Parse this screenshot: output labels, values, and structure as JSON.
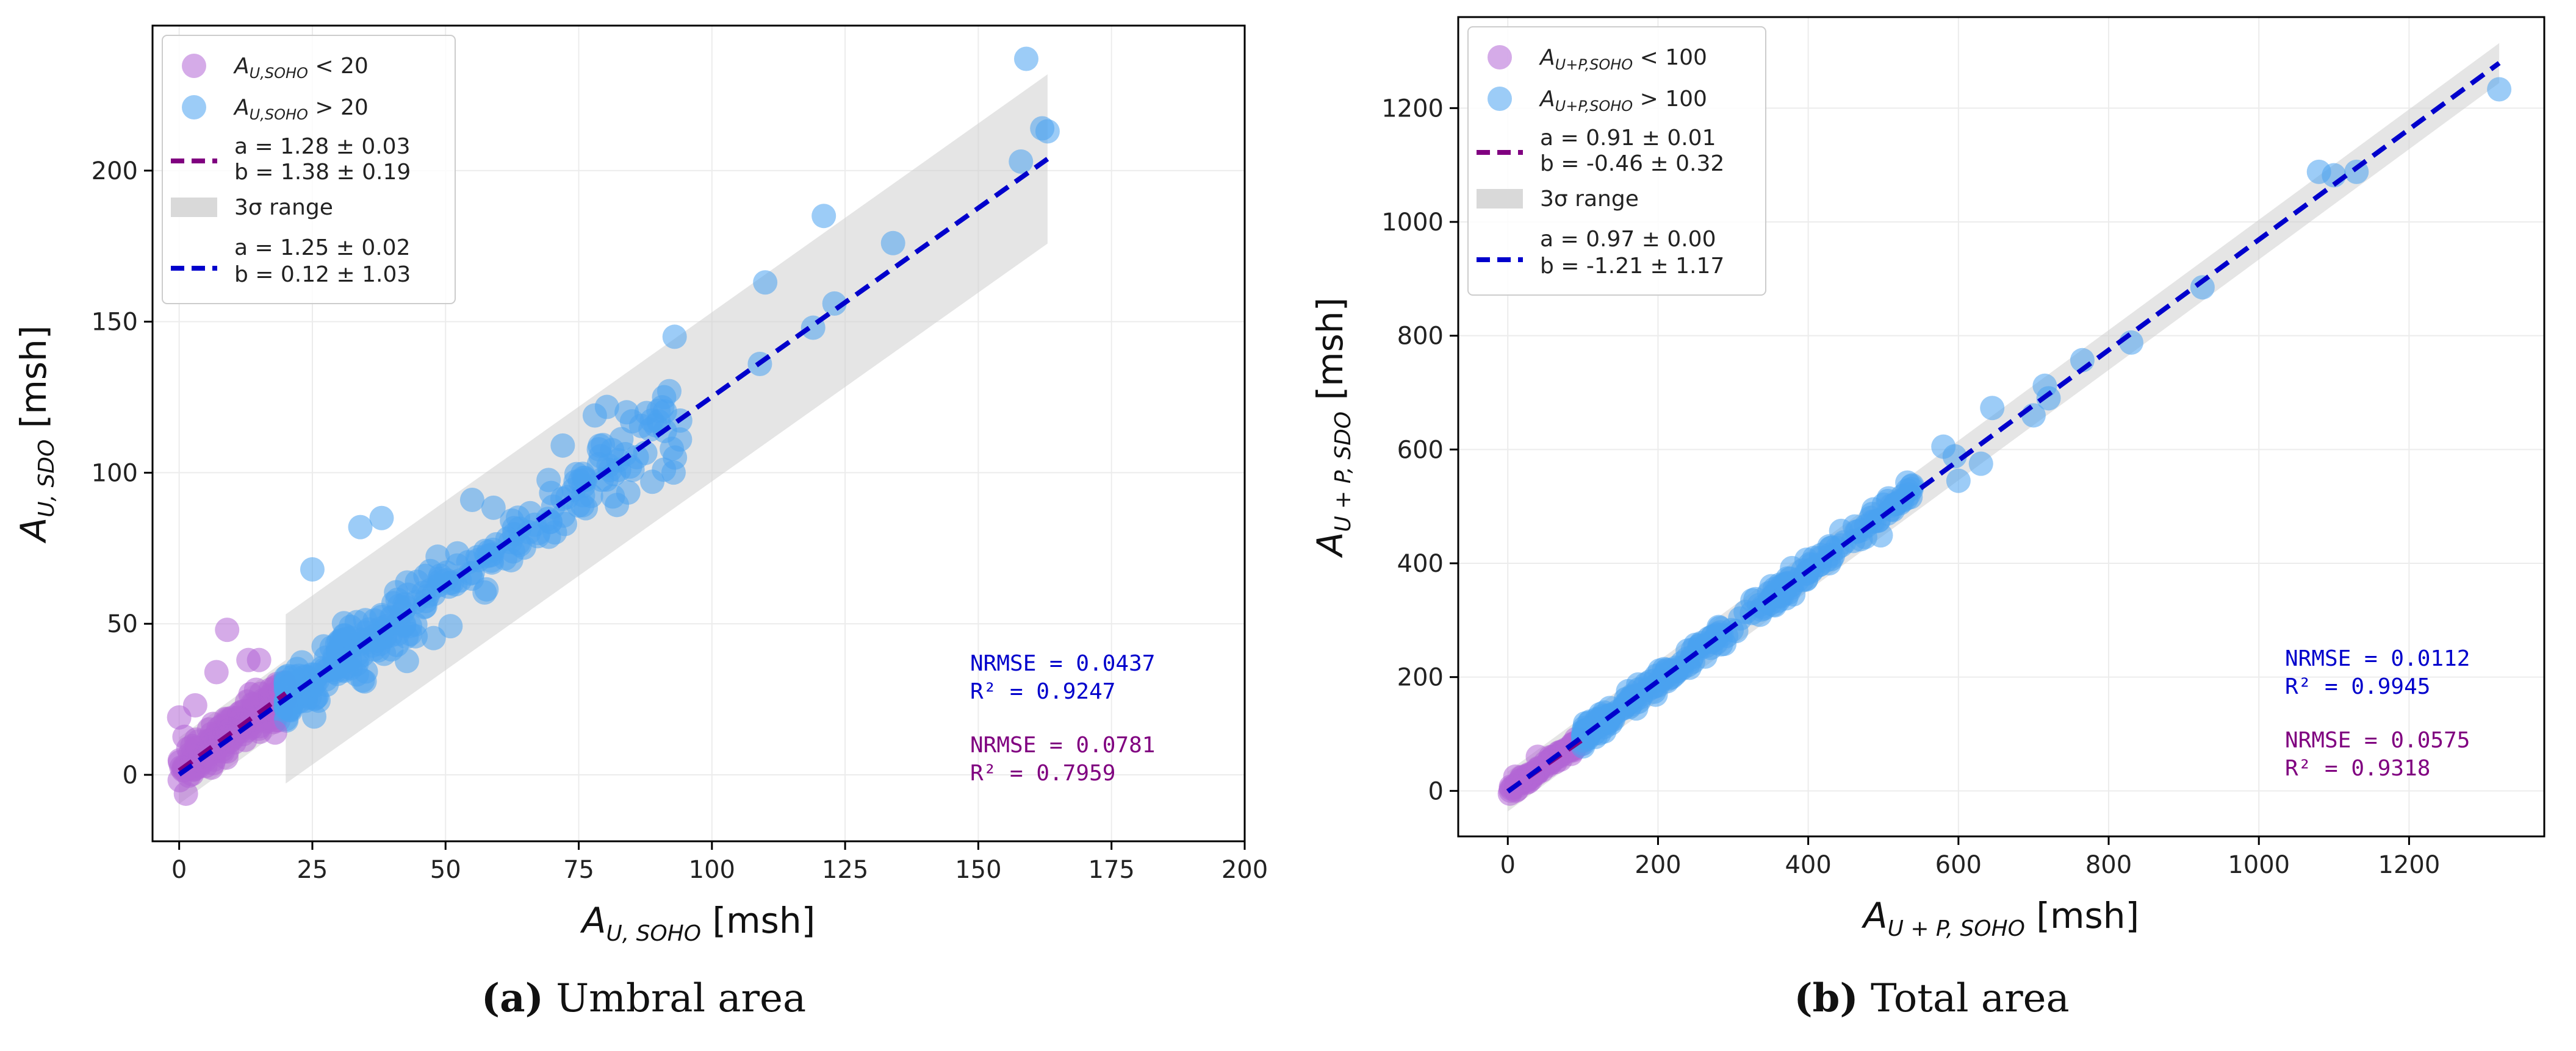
{
  "chart_data": [
    {
      "type": "scatter",
      "panel": "a",
      "caption": {
        "tag": "(a)",
        "text": "Umbral area"
      },
      "xlabel": {
        "main": "A",
        "sub": "U, SOHO",
        "unit": "[msh]"
      },
      "ylabel": {
        "main": "A",
        "sub": "U, SDO",
        "unit": "[msh]"
      },
      "xlim": [
        -5,
        200
      ],
      "ylim": [
        -22,
        248
      ],
      "xticks": [
        0,
        25,
        50,
        75,
        100,
        125,
        150,
        175,
        200
      ],
      "yticks": [
        0,
        50,
        100,
        150,
        200
      ],
      "threshold": 20,
      "colors": {
        "low": "#b266d6",
        "high": "#4aa3f0",
        "low_fit": "#800080",
        "high_fit": "#0000cc",
        "band": "#cfcfcf"
      },
      "legend": {
        "position": "upper-left",
        "low_label": {
          "main": "A",
          "sub": "U,SOHO",
          "rel": "< 20"
        },
        "high_label": {
          "main": "A",
          "sub": "U,SOHO",
          "rel": "> 20"
        },
        "low_fit": [
          "a = 1.28 ± 0.03",
          "b = 1.38 ± 0.19"
        ],
        "band_label": "3σ range",
        "high_fit": [
          "a = 1.25 ± 0.02",
          "b = 0.12 ± 1.03"
        ]
      },
      "fits": {
        "low": {
          "a": 1.28,
          "b": 1.38,
          "x": [
            0,
            20
          ]
        },
        "high": {
          "a": 1.25,
          "b": 0.12,
          "x": [
            0,
            163
          ]
        },
        "band": {
          "x": [
            20,
            163
          ],
          "halfwidth": 28
        }
      },
      "stats": {
        "high": [
          "NRMSE = 0.0437",
          "R² = 0.9247"
        ],
        "low": [
          "NRMSE = 0.0781",
          "R² = 0.7959"
        ]
      },
      "outliers_high": [
        [
          159,
          237
        ],
        [
          158,
          203
        ],
        [
          162,
          214
        ],
        [
          163,
          213
        ],
        [
          121,
          185
        ],
        [
          110,
          163
        ],
        [
          134,
          176
        ],
        [
          93,
          145
        ],
        [
          123,
          156
        ],
        [
          119,
          148
        ],
        [
          109,
          136
        ],
        [
          92,
          127
        ],
        [
          84,
          120
        ],
        [
          85,
          117
        ],
        [
          90,
          117
        ],
        [
          94,
          111
        ],
        [
          91,
          101
        ],
        [
          25,
          68
        ],
        [
          34,
          82
        ],
        [
          38,
          85
        ],
        [
          72,
          109
        ],
        [
          55,
          91
        ]
      ],
      "outliers_low": [
        [
          9,
          48
        ],
        [
          7,
          34
        ],
        [
          13,
          38
        ],
        [
          0,
          19
        ],
        [
          3,
          23
        ],
        [
          15,
          38
        ],
        [
          18,
          14
        ]
      ]
    },
    {
      "type": "scatter",
      "panel": "b",
      "caption": {
        "tag": "(b)",
        "text": "Total area"
      },
      "xlabel": {
        "main": "A",
        "sub": "U + P, SOHO",
        "unit": "[msh]"
      },
      "ylabel": {
        "main": "A",
        "sub": "U + P, SDO",
        "unit": "[msh]"
      },
      "xlim": [
        -66,
        1380
      ],
      "ylim": [
        -80,
        1360
      ],
      "xticks": [
        0,
        200,
        400,
        600,
        800,
        1000,
        1200
      ],
      "yticks": [
        0,
        200,
        400,
        600,
        800,
        1000,
        1200
      ],
      "threshold": 100,
      "colors": {
        "low": "#b266d6",
        "high": "#4aa3f0",
        "low_fit": "#800080",
        "high_fit": "#0000cc",
        "band": "#cfcfcf"
      },
      "legend": {
        "position": "upper-left",
        "low_label": {
          "main": "A",
          "sub": "U+P,SOHO",
          "rel": "< 100"
        },
        "high_label": {
          "main": "A",
          "sub": "U+P,SOHO",
          "rel": "> 100"
        },
        "low_fit": [
          "a = 0.91 ± 0.01",
          "b = -0.46 ± 0.32"
        ],
        "band_label": "3σ range",
        "high_fit": [
          "a = 0.97 ± 0.00",
          "b = -1.21 ± 1.17"
        ]
      },
      "fits": {
        "low": {
          "a": 0.91,
          "b": -0.46,
          "x": [
            0,
            100
          ]
        },
        "high": {
          "a": 0.97,
          "b": -1.21,
          "x": [
            0,
            1320
          ]
        },
        "band": {
          "x": [
            0,
            1320
          ],
          "halfwidth": 35
        }
      },
      "stats": {
        "high": [
          "NRMSE = 0.0112",
          "R² = 0.9945"
        ],
        "low": [
          "NRMSE = 0.0575",
          "R² = 0.9318"
        ]
      },
      "outliers_high": [
        [
          1320,
          1233
        ],
        [
          1080,
          1088
        ],
        [
          1100,
          1082
        ],
        [
          1130,
          1088
        ],
        [
          925,
          885
        ],
        [
          830,
          788
        ],
        [
          765,
          757
        ],
        [
          700,
          660
        ],
        [
          720,
          690
        ],
        [
          715,
          712
        ],
        [
          645,
          673
        ],
        [
          630,
          575
        ],
        [
          580,
          605
        ],
        [
          600,
          545
        ],
        [
          595,
          588
        ]
      ],
      "outliers_low": [
        [
          10,
          25
        ],
        [
          40,
          60
        ],
        [
          70,
          55
        ]
      ]
    }
  ]
}
